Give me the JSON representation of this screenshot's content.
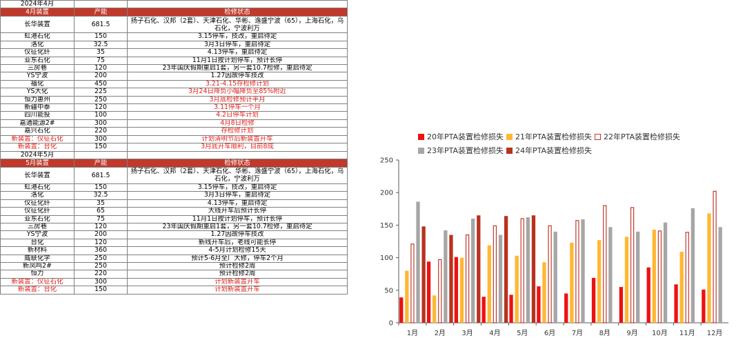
{
  "table_april": {
    "year_label": "2024年4月",
    "header": [
      "4月装置",
      "产能",
      "检修状态"
    ],
    "rows": [
      {
        "name": "长华装置",
        "cap": "681.5",
        "status": "扬子石化、汉邦（2套）、天津石化、华彬、逸盛宁波（65），上海石化，乌石化，宁波利万",
        "red": false,
        "tall": true
      },
      {
        "name": "虹港石化",
        "cap": "150",
        "status": "3.15停车，技改，重启待定",
        "red": false
      },
      {
        "name": "洛化",
        "cap": "32.5",
        "status": "3月3日停车，重启待定",
        "red": false
      },
      {
        "name": "仪征化纤",
        "cap": "35",
        "status": "4.13停车，重启待定",
        "red": false
      },
      {
        "name": "亚东石化",
        "cap": "75",
        "status": "11月1日按计划停车，预计长停",
        "red": false
      },
      {
        "name": "三房巷",
        "cap": "120",
        "status": "23年国庆假期重启1套，另一套10.7检修，重启待定",
        "red": false
      },
      {
        "name": "YS宁波",
        "cap": "200",
        "status": "1.27因故停车技改",
        "red": false
      },
      {
        "name": "福化",
        "cap": "450",
        "status": "3.21-4.15存检修计划",
        "red": true
      },
      {
        "name": "YS大化",
        "cap": "225",
        "status": "3月24日降负小幅降负至85%附近",
        "red": true
      },
      {
        "name": "恒力惠州",
        "cap": "250",
        "status": "3月底检修预计半月",
        "red": true
      },
      {
        "name": "新疆中泰",
        "cap": "120",
        "status": "3.11停车一个月",
        "red": true
      },
      {
        "name": "四川能投",
        "cap": "100",
        "status": "4.2日停车计划",
        "red": true
      },
      {
        "name": "嘉通能源2#",
        "cap": "300",
        "status": "4月8日检修",
        "red": true
      },
      {
        "name": "嘉兴石化",
        "cap": "220",
        "status": "存检修计划",
        "red": true
      },
      {
        "name": "新装置：仪征石化",
        "cap": "300",
        "status": "计划清明节后新装置开车",
        "red": true,
        "name_red": true
      },
      {
        "name": "新装置：台化",
        "cap": "150",
        "status": "3月底开车顺利，目前8成",
        "red": true,
        "name_red": true
      }
    ]
  },
  "table_may": {
    "year_label": "2024年5月",
    "header": [
      "5月装置",
      "产能",
      "检修状态"
    ],
    "rows": [
      {
        "name": "长华装置",
        "cap": "681.5",
        "status": "扬子石化、汉邦（2套）、天津石化、华彬、逸盛宁波（65），上海石化，乌石化，宁波利万",
        "red": false,
        "tall": true
      },
      {
        "name": "虹港石化",
        "cap": "150",
        "status": "3.15停车，技改，重启待定",
        "red": false
      },
      {
        "name": "洛化",
        "cap": "32.5",
        "status": "3月3日停车，重启待定",
        "red": false
      },
      {
        "name": "仪征化纤",
        "cap": "35",
        "status": "4.13停车，重启待定",
        "red": false
      },
      {
        "name": "仪征化纤",
        "cap": "65",
        "status": "大线开车后预计长停",
        "red": false
      },
      {
        "name": "亚东石化",
        "cap": "75",
        "status": "11月1日按计划停车，预计长停",
        "red": false
      },
      {
        "name": "三房巷",
        "cap": "120",
        "status": "23年国庆假期重启1套，另一套10.7检修，重启待定",
        "red": false
      },
      {
        "name": "YS宁波",
        "cap": "200",
        "status": "1.27因故停车技改",
        "red": false
      },
      {
        "name": "台化",
        "cap": "120",
        "status": "新线开车后，老线可能长停",
        "red": false
      },
      {
        "name": "新材料",
        "cap": "360",
        "status": "4-5月计划检修15天",
        "red": false
      },
      {
        "name": "威联化学",
        "cap": "250",
        "status": "预计5-6月全厂大修，停车2个月",
        "red": false
      },
      {
        "name": "新凤鸣2#",
        "cap": "250",
        "status": "预计检修2周",
        "red": false
      },
      {
        "name": "恒力",
        "cap": "220",
        "status": "预计检修2周",
        "red": false
      },
      {
        "name": "新装置：仪征石化",
        "cap": "300",
        "status": "计划新装置开车",
        "red": true,
        "name_red": true
      },
      {
        "name": "新装置：台化",
        "cap": "150",
        "status": "计划新装置开车",
        "red": true,
        "name_red": true
      }
    ]
  },
  "chart_data": {
    "type": "bar",
    "categories": [
      "1月",
      "2月",
      "3月",
      "4月",
      "5月",
      "6月",
      "7月",
      "8月",
      "9月",
      "10月",
      "11月",
      "12月"
    ],
    "ylim": [
      0,
      250
    ],
    "yticks": [
      0,
      50,
      100,
      150,
      200,
      250
    ],
    "series": [
      {
        "name": "20年PTA装置检修损失",
        "color": "#ee1111",
        "style": "solid",
        "values": [
          39,
          94,
          101,
          40,
          43,
          56,
          45,
          69,
          55,
          85,
          59,
          51
        ]
      },
      {
        "name": "21年PTA装置检修损失",
        "color": "#ffb833",
        "style": "solid",
        "values": [
          80,
          42,
          100,
          119,
          103,
          93,
          123,
          127,
          132,
          143,
          109,
          168
        ]
      },
      {
        "name": "22年PTA装置检修损失",
        "color": "#c0392b",
        "style": "outline",
        "values": [
          121,
          97,
          135,
          149,
          160,
          149,
          157,
          180,
          177,
          141,
          139,
          202
        ]
      },
      {
        "name": "23年PTA装置检修损失",
        "color": "#a6a6a6",
        "style": "solid",
        "values": [
          186,
          142,
          160,
          135,
          162,
          140,
          159,
          147,
          140,
          154,
          176,
          147
        ]
      },
      {
        "name": "24年PTA装置检修损失",
        "color": "#b8321f",
        "style": "solid",
        "values": [
          148,
          135,
          165,
          164,
          165,
          null,
          null,
          null,
          null,
          null,
          null,
          null
        ]
      }
    ]
  }
}
